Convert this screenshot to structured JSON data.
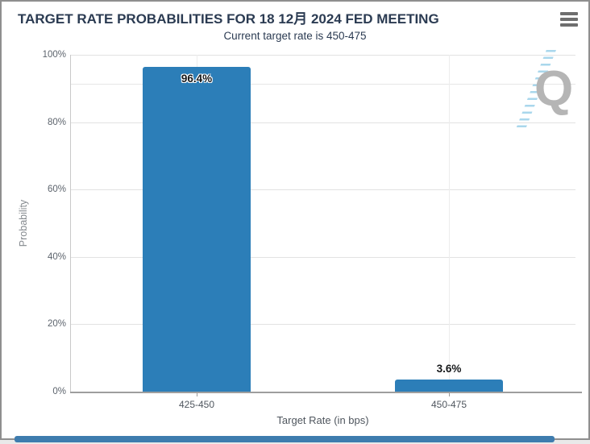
{
  "page": {
    "watermark_letter": "Q",
    "menu_icon": "hamburger-menu"
  },
  "chart_data": {
    "type": "bar",
    "title": "TARGET RATE PROBABILITIES FOR 18 12月 2024 FED MEETING",
    "subtitle": "Current target rate is 450-475",
    "categories": [
      "425-450",
      "450-475"
    ],
    "values": [
      96.4,
      3.6
    ],
    "value_labels": [
      "96.4%",
      "3.6%"
    ],
    "xlabel": "Target Rate (in bps)",
    "ylabel": "Probability",
    "ylim": [
      0,
      100
    ],
    "yticks": [
      0,
      20,
      40,
      60,
      80,
      100
    ],
    "ytick_labels": [
      "0%",
      "20%",
      "40%",
      "60%",
      "80%",
      "100%"
    ],
    "minor_gridlines": [
      91.3
    ],
    "grid": true,
    "legend": false,
    "bar_color": "#2c7eb8"
  }
}
